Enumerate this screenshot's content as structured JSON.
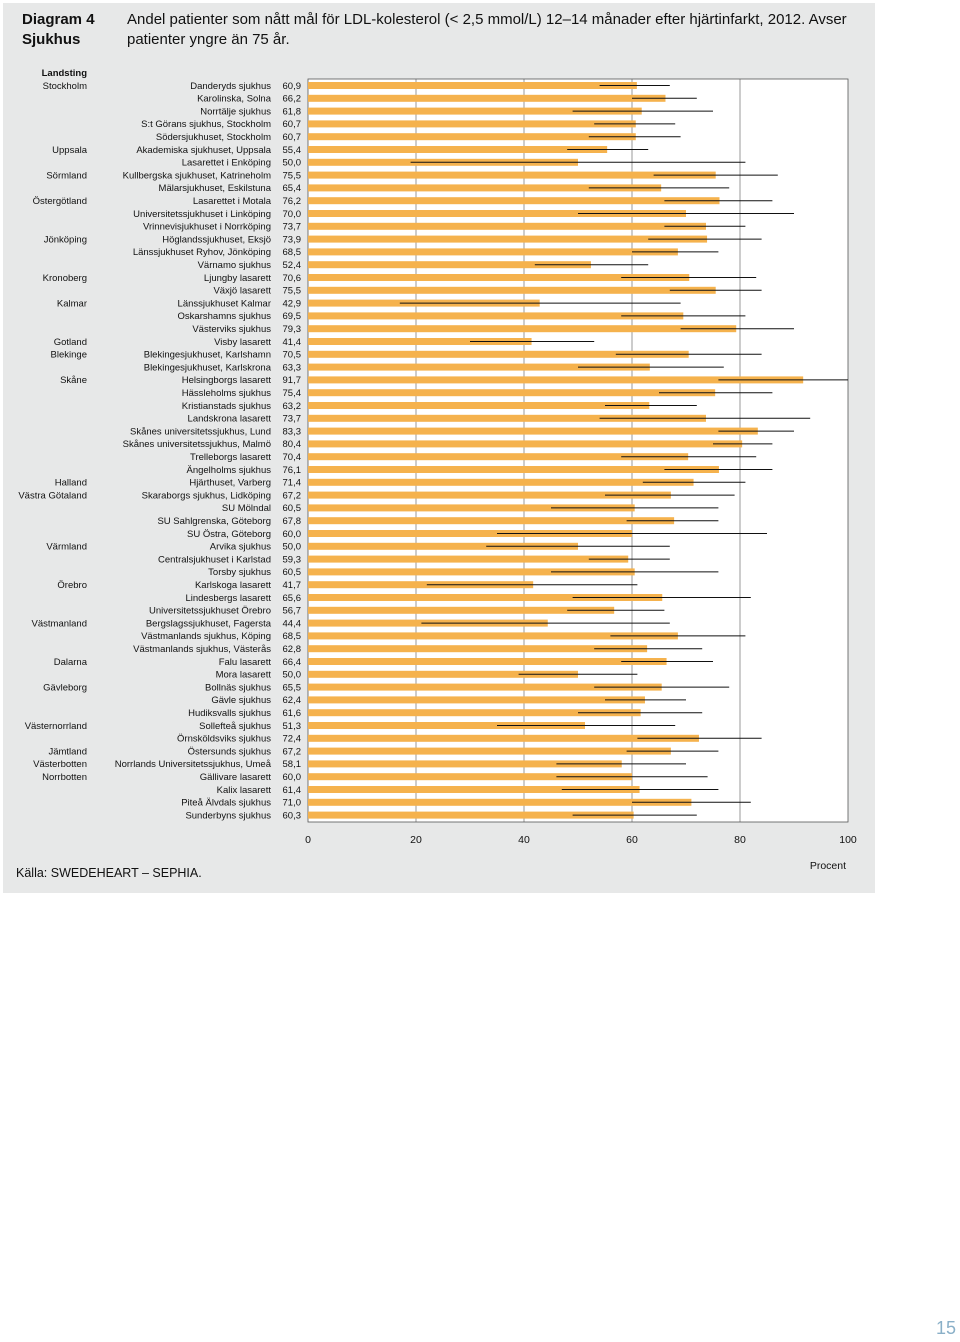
{
  "header": {
    "diagram_label": "Diagram 4\nSjukhus",
    "title": "Andel patienter som nått mål för LDL-kolesterol (< 2,5 mmol/L) 12–14 månader efter hjärtinfarkt, 2012. Avser patienter yngre än 75 år."
  },
  "footer": {
    "source": "Källa: SWEDEHEART – SEPHIA.",
    "page_number": "15"
  },
  "chart_data": {
    "type": "bar",
    "orientation": "horizontal",
    "title": "Andel patienter som nått mål för LDL-kolesterol (< 2,5 mmol/L) 12–14 månader efter hjärtinfarkt, 2012. Avser patienter yngre än 75 år.",
    "xlabel": "Procent",
    "region_header": "Landsting",
    "xlim": [
      0,
      100
    ],
    "x_ticks": [
      "0",
      "20",
      "40",
      "60",
      "80",
      "100"
    ],
    "x_tick_values": [
      0,
      20,
      40,
      60,
      80,
      100
    ],
    "grid": true,
    "colors": {
      "bar": "#f5b24d",
      "error": "#111111",
      "panel": "#e7e8e8"
    },
    "rows": [
      {
        "region": "Stockholm",
        "hospital": "Danderyds sjukhus",
        "label": "60,9",
        "value": 60.9,
        "lo": 54,
        "hi": 67
      },
      {
        "region": "",
        "hospital": "Karolinska, Solna",
        "label": "66,2",
        "value": 66.2,
        "lo": 60,
        "hi": 72
      },
      {
        "region": "",
        "hospital": "Norrtälje sjukhus",
        "label": "61,8",
        "value": 61.8,
        "lo": 49,
        "hi": 75
      },
      {
        "region": "",
        "hospital": "S:t Görans sjukhus, Stockholm",
        "label": "60,7",
        "value": 60.7,
        "lo": 53,
        "hi": 68
      },
      {
        "region": "",
        "hospital": "Södersjukhuset, Stockholm",
        "label": "60,7",
        "value": 60.7,
        "lo": 52,
        "hi": 69
      },
      {
        "region": "Uppsala",
        "hospital": "Akademiska sjukhuset, Uppsala",
        "label": "55,4",
        "value": 55.4,
        "lo": 48,
        "hi": 63
      },
      {
        "region": "",
        "hospital": "Lasarettet i Enköping",
        "label": "50,0",
        "value": 50.0,
        "lo": 19,
        "hi": 81
      },
      {
        "region": "Sörmland",
        "hospital": "Kullbergska sjukhuset, Katrineholm",
        "label": "75,5",
        "value": 75.5,
        "lo": 64,
        "hi": 87
      },
      {
        "region": "",
        "hospital": "Mälarsjukhuset, Eskilstuna",
        "label": "65,4",
        "value": 65.4,
        "lo": 52,
        "hi": 78
      },
      {
        "region": "Östergötland",
        "hospital": "Lasarettet i Motala",
        "label": "76,2",
        "value": 76.2,
        "lo": 66,
        "hi": 86
      },
      {
        "region": "",
        "hospital": "Universitetssjukhuset i Linköping",
        "label": "70,0",
        "value": 70.0,
        "lo": 50,
        "hi": 90
      },
      {
        "region": "",
        "hospital": "Vrinnevisjukhuset i Norrköping",
        "label": "73,7",
        "value": 73.7,
        "lo": 66,
        "hi": 81
      },
      {
        "region": "Jönköping",
        "hospital": "Höglandssjukhuset, Eksjö",
        "label": "73,9",
        "value": 73.9,
        "lo": 63,
        "hi": 84
      },
      {
        "region": "",
        "hospital": "Länssjukhuset Ryhov, Jönköping",
        "label": "68,5",
        "value": 68.5,
        "lo": 60,
        "hi": 76
      },
      {
        "region": "",
        "hospital": "Värnamo sjukhus",
        "label": "52,4",
        "value": 52.4,
        "lo": 42,
        "hi": 63
      },
      {
        "region": "Kronoberg",
        "hospital": "Ljungby lasarett",
        "label": "70,6",
        "value": 70.6,
        "lo": 58,
        "hi": 83
      },
      {
        "region": "",
        "hospital": "Växjö lasarett",
        "label": "75,5",
        "value": 75.5,
        "lo": 67,
        "hi": 84
      },
      {
        "region": "Kalmar",
        "hospital": "Länssjukhuset Kalmar",
        "label": "42,9",
        "value": 42.9,
        "lo": 17,
        "hi": 69
      },
      {
        "region": "",
        "hospital": "Oskarshamns sjukhus",
        "label": "69,5",
        "value": 69.5,
        "lo": 58,
        "hi": 81
      },
      {
        "region": "",
        "hospital": "Västerviks sjukhus",
        "label": "79,3",
        "value": 79.3,
        "lo": 69,
        "hi": 90
      },
      {
        "region": "Gotland",
        "hospital": "Visby lasarett",
        "label": "41,4",
        "value": 41.4,
        "lo": 30,
        "hi": 53
      },
      {
        "region": "Blekinge",
        "hospital": "Blekingesjukhuset, Karlshamn",
        "label": "70,5",
        "value": 70.5,
        "lo": 57,
        "hi": 84
      },
      {
        "region": "",
        "hospital": "Blekingesjukhuset, Karlskrona",
        "label": "63,3",
        "value": 63.3,
        "lo": 50,
        "hi": 77
      },
      {
        "region": "Skåne",
        "hospital": "Helsingborgs lasarett",
        "label": "91,7",
        "value": 91.7,
        "lo": 76,
        "hi": 100
      },
      {
        "region": "",
        "hospital": "Hässleholms sjukhus",
        "label": "75,4",
        "value": 75.4,
        "lo": 65,
        "hi": 86
      },
      {
        "region": "",
        "hospital": "Kristianstads sjukhus",
        "label": "63,2",
        "value": 63.2,
        "lo": 55,
        "hi": 72
      },
      {
        "region": "",
        "hospital": "Landskrona lasarett",
        "label": "73,7",
        "value": 73.7,
        "lo": 54,
        "hi": 93
      },
      {
        "region": "",
        "hospital": "Skånes universitetssjukhus, Lund",
        "label": "83,3",
        "value": 83.3,
        "lo": 76,
        "hi": 90
      },
      {
        "region": "",
        "hospital": "Skånes universitetssjukhus, Malmö",
        "label": "80,4",
        "value": 80.4,
        "lo": 75,
        "hi": 86
      },
      {
        "region": "",
        "hospital": "Trelleborgs lasarett",
        "label": "70,4",
        "value": 70.4,
        "lo": 58,
        "hi": 83
      },
      {
        "region": "",
        "hospital": "Ängelholms sjukhus",
        "label": "76,1",
        "value": 76.1,
        "lo": 66,
        "hi": 86
      },
      {
        "region": "Halland",
        "hospital": "Hjärthuset, Varberg",
        "label": "71,4",
        "value": 71.4,
        "lo": 62,
        "hi": 81
      },
      {
        "region": "Västra Götaland",
        "hospital": "Skaraborgs sjukhus, Lidköping",
        "label": "67,2",
        "value": 67.2,
        "lo": 55,
        "hi": 79
      },
      {
        "region": "",
        "hospital": "SU Mölndal",
        "label": "60,5",
        "value": 60.5,
        "lo": 45,
        "hi": 76
      },
      {
        "region": "",
        "hospital": "SU Sahlgrenska, Göteborg",
        "label": "67,8",
        "value": 67.8,
        "lo": 59,
        "hi": 76
      },
      {
        "region": "",
        "hospital": "SU Östra, Göteborg",
        "label": "60,0",
        "value": 60.0,
        "lo": 35,
        "hi": 85
      },
      {
        "region": "Värmland",
        "hospital": "Arvika sjukhus",
        "label": "50,0",
        "value": 50.0,
        "lo": 33,
        "hi": 67
      },
      {
        "region": "",
        "hospital": "Centralsjukhuset i Karlstad",
        "label": "59,3",
        "value": 59.3,
        "lo": 52,
        "hi": 67
      },
      {
        "region": "",
        "hospital": "Torsby sjukhus",
        "label": "60,5",
        "value": 60.5,
        "lo": 45,
        "hi": 76
      },
      {
        "region": "Örebro",
        "hospital": "Karlskoga lasarett",
        "label": "41,7",
        "value": 41.7,
        "lo": 22,
        "hi": 61
      },
      {
        "region": "",
        "hospital": "Lindesbergs lasarett",
        "label": "65,6",
        "value": 65.6,
        "lo": 49,
        "hi": 82
      },
      {
        "region": "",
        "hospital": "Universitetssjukhuset Örebro",
        "label": "56,7",
        "value": 56.7,
        "lo": 48,
        "hi": 66
      },
      {
        "region": "Västmanland",
        "hospital": "Bergslagssjukhuset, Fagersta",
        "label": "44,4",
        "value": 44.4,
        "lo": 21,
        "hi": 67
      },
      {
        "region": "",
        "hospital": "Västmanlands sjukhus, Köping",
        "label": "68,5",
        "value": 68.5,
        "lo": 56,
        "hi": 81
      },
      {
        "region": "",
        "hospital": "Västmanlands sjukhus, Västerås",
        "label": "62,8",
        "value": 62.8,
        "lo": 53,
        "hi": 73
      },
      {
        "region": "Dalarna",
        "hospital": "Falu lasarett",
        "label": "66,4",
        "value": 66.4,
        "lo": 58,
        "hi": 75
      },
      {
        "region": "",
        "hospital": "Mora lasarett",
        "label": "50,0",
        "value": 50.0,
        "lo": 39,
        "hi": 61
      },
      {
        "region": "Gävleborg",
        "hospital": "Bollnäs sjukhus",
        "label": "65,5",
        "value": 65.5,
        "lo": 53,
        "hi": 78
      },
      {
        "region": "",
        "hospital": "Gävle sjukhus",
        "label": "62,4",
        "value": 62.4,
        "lo": 55,
        "hi": 70
      },
      {
        "region": "",
        "hospital": "Hudiksvalls sjukhus",
        "label": "61,6",
        "value": 61.6,
        "lo": 50,
        "hi": 73
      },
      {
        "region": "Västernorrland",
        "hospital": "Sollefteå sjukhus",
        "label": "51,3",
        "value": 51.3,
        "lo": 35,
        "hi": 68
      },
      {
        "region": "",
        "hospital": "Örnsköldsviks sjukhus",
        "label": "72,4",
        "value": 72.4,
        "lo": 61,
        "hi": 84
      },
      {
        "region": "Jämtland",
        "hospital": "Östersunds sjukhus",
        "label": "67,2",
        "value": 67.2,
        "lo": 59,
        "hi": 76
      },
      {
        "region": "Västerbotten",
        "hospital": "Norrlands Universitetssjukhus, Umeå",
        "label": "58,1",
        "value": 58.1,
        "lo": 46,
        "hi": 70
      },
      {
        "region": "Norrbotten",
        "hospital": "Gällivare lasarett",
        "label": "60,0",
        "value": 60.0,
        "lo": 46,
        "hi": 74
      },
      {
        "region": "",
        "hospital": "Kalix lasarett",
        "label": "61,4",
        "value": 61.4,
        "lo": 47,
        "hi": 76
      },
      {
        "region": "",
        "hospital": "Piteå Älvdals sjukhus",
        "label": "71,0",
        "value": 71.0,
        "lo": 60,
        "hi": 82
      },
      {
        "region": "",
        "hospital": "Sunderbyns sjukhus",
        "label": "60,3",
        "value": 60.3,
        "lo": 49,
        "hi": 72
      }
    ]
  }
}
